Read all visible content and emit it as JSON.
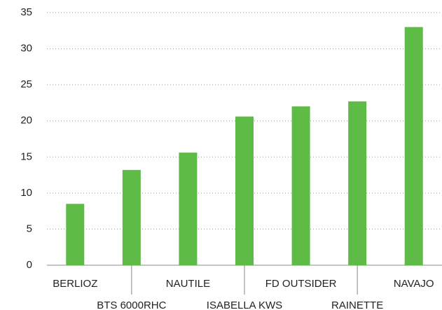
{
  "chart_data": {
    "type": "bar",
    "categories": [
      "BERLIOZ",
      "BTS 6000RHC",
      "NAUTILE",
      "ISABELLA KWS",
      "FD OUTSIDER",
      "RAINETTE",
      "NAVAJO"
    ],
    "values": [
      8.5,
      13.2,
      15.6,
      20.6,
      22,
      22.7,
      33
    ],
    "color": "#5dbb46",
    "ylim": [
      0,
      35
    ],
    "yticks": [
      0,
      5,
      10,
      15,
      20,
      25,
      30,
      35
    ],
    "grid": true
  }
}
